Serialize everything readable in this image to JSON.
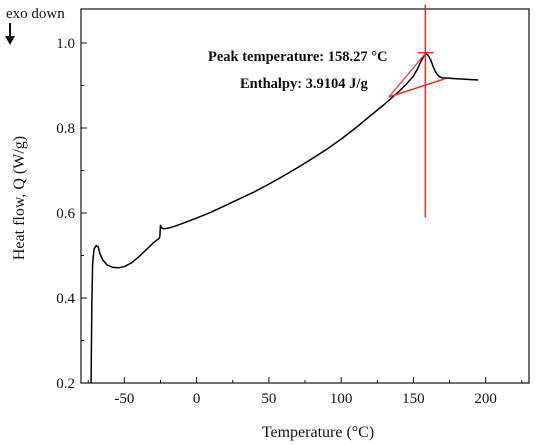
{
  "chart_data": {
    "type": "line",
    "xlabel": "Temperature (°C)",
    "ylabel": "Heat flow, Q (W/g)",
    "xlim": [
      -80,
      230
    ],
    "ylim": [
      0.2,
      1.08
    ],
    "x_ticks": [
      -50,
      0,
      50,
      100,
      150,
      200
    ],
    "y_ticks": [
      0.2,
      0.4,
      0.6,
      0.8,
      1.0
    ],
    "x_tick_labels": [
      "-50",
      "0",
      "50",
      "100",
      "150",
      "200"
    ],
    "y_tick_labels": [
      "0.2",
      "0.4",
      "0.6",
      "0.8",
      "1.0"
    ],
    "exo_label": "exo down",
    "series": [
      {
        "color": "#000000",
        "points": [
          [
            -73,
            0.2
          ],
          [
            -72.5,
            0.38
          ],
          [
            -72,
            0.48
          ],
          [
            -71,
            0.515
          ],
          [
            -69.5,
            0.523
          ],
          [
            -68,
            0.52
          ],
          [
            -67,
            0.505
          ],
          [
            -65,
            0.49
          ],
          [
            -62,
            0.478
          ],
          [
            -58,
            0.472
          ],
          [
            -54,
            0.471
          ],
          [
            -50,
            0.474
          ],
          [
            -45,
            0.483
          ],
          [
            -40,
            0.497
          ],
          [
            -35,
            0.513
          ],
          [
            -30,
            0.53
          ],
          [
            -26,
            0.54
          ],
          [
            -25.5,
            0.544
          ],
          [
            -25,
            0.572
          ],
          [
            -24.5,
            0.566
          ],
          [
            -23,
            0.563
          ],
          [
            -20,
            0.564
          ],
          [
            -15,
            0.569
          ],
          [
            -10,
            0.575
          ],
          [
            0,
            0.588
          ],
          [
            10,
            0.602
          ],
          [
            20,
            0.618
          ],
          [
            30,
            0.634
          ],
          [
            40,
            0.65
          ],
          [
            50,
            0.668
          ],
          [
            60,
            0.687
          ],
          [
            70,
            0.707
          ],
          [
            80,
            0.728
          ],
          [
            90,
            0.75
          ],
          [
            100,
            0.774
          ],
          [
            110,
            0.8
          ],
          [
            120,
            0.828
          ],
          [
            130,
            0.856
          ],
          [
            140,
            0.886
          ],
          [
            145,
            0.903
          ],
          [
            150,
            0.922
          ],
          [
            153,
            0.94
          ],
          [
            155,
            0.955
          ],
          [
            157,
            0.968
          ],
          [
            158.27,
            0.975
          ],
          [
            160,
            0.972
          ],
          [
            162,
            0.96
          ],
          [
            164,
            0.942
          ],
          [
            166,
            0.928
          ],
          [
            168,
            0.921
          ],
          [
            170,
            0.918
          ],
          [
            175,
            0.917
          ],
          [
            180,
            0.916
          ],
          [
            185,
            0.915
          ],
          [
            190,
            0.914
          ],
          [
            195,
            0.913
          ]
        ]
      }
    ],
    "annotations": [
      {
        "text": "Peak temperature: 158.27 °C",
        "x": 158.27
      },
      {
        "text": "Enthalpy: 3.9104 J/g"
      }
    ],
    "analysis_marks": {
      "color": "#e0302a",
      "vertical_line_x": 158.27,
      "vertical_line_y": [
        0.59,
        1.09
      ],
      "baseline": [
        [
          133,
          0.873
        ],
        [
          172,
          0.916
        ]
      ],
      "peak_tick": [
        [
          153,
          0.977
        ],
        [
          164,
          0.977
        ]
      ]
    }
  }
}
